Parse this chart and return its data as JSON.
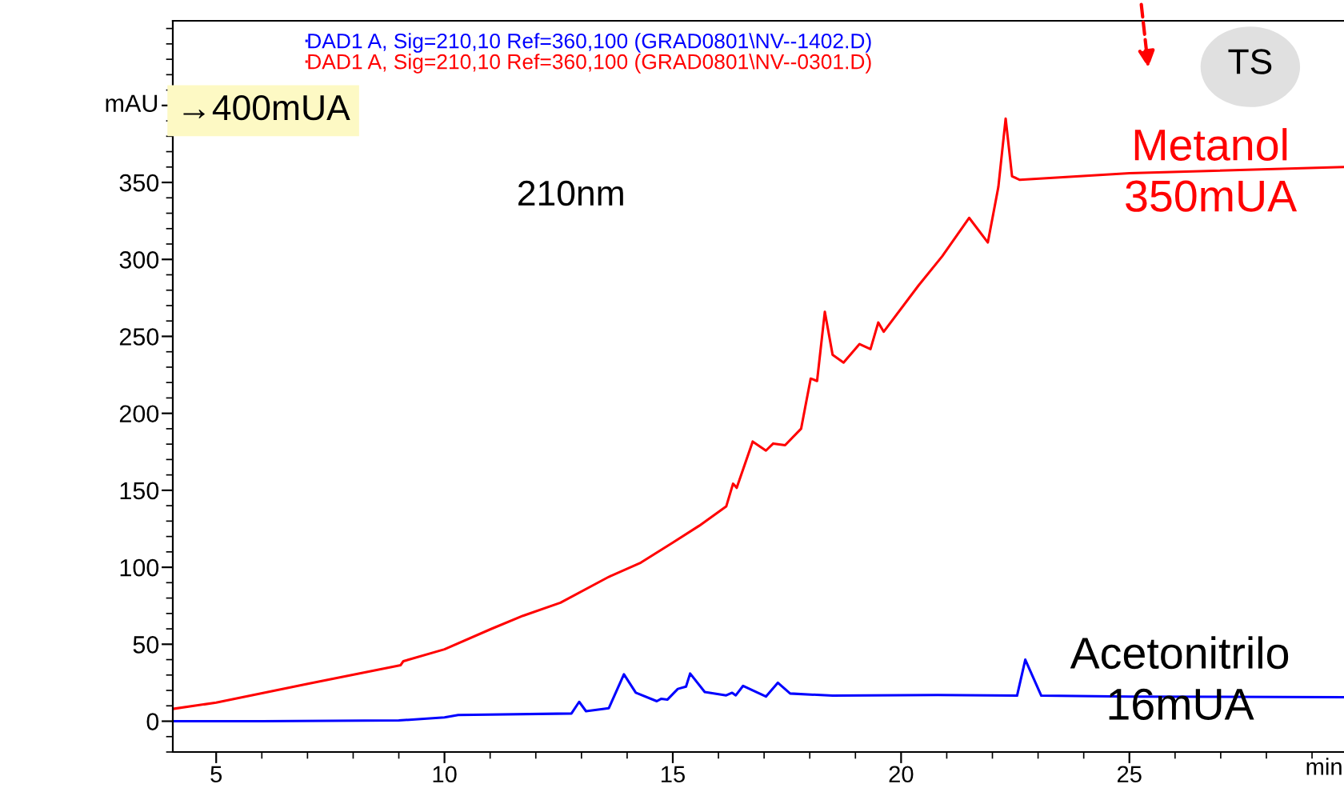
{
  "chart_data": {
    "type": "line",
    "xlabel": "min",
    "series": [
      {
        "name": "DAD1 A, Sig=210,10 Ref=360,100 (GRAD0801\\NV--1402.D)",
        "color": "#0000ff",
        "x": [
          4.05,
          6,
          9,
          10,
          10.3,
          12.78,
          12.95,
          13.1,
          13.6,
          13.93,
          14.19,
          14.65,
          14.75,
          14.88,
          15.11,
          15.29,
          15.38,
          15.7,
          16.17,
          16.3,
          16.38,
          16.54,
          17.04,
          17.3,
          17.57,
          18.5,
          20.8,
          22.54,
          22.72,
          23.07,
          25,
          29.7
        ],
        "values": [
          0,
          0,
          0.5,
          2.5,
          4,
          5,
          12.6,
          6.5,
          8.5,
          30.5,
          18.5,
          13,
          14.6,
          14,
          21,
          22.5,
          31,
          19,
          16.8,
          18.5,
          16.8,
          23,
          16,
          25,
          18,
          16.6,
          17,
          16.6,
          40,
          16.6,
          16,
          15.6
        ]
      },
      {
        "name": "DAD1 A, Sig=210,10 Ref=360,100 (GRAD0801\\NV--0301.D)",
        "color": "#ff0000",
        "x": [
          4.05,
          5,
          7.05,
          9.04,
          9.1,
          10,
          11.02,
          11.72,
          12.54,
          13.6,
          14.3,
          15,
          15.58,
          16.17,
          16.32,
          16.4,
          16.75,
          17.04,
          17.2,
          17.46,
          17.81,
          18.02,
          18.16,
          18.33,
          18.5,
          18.74,
          19.09,
          19.33,
          19.5,
          19.62,
          20.38,
          20.9,
          21.49,
          21.9,
          22.13,
          22.29,
          22.43,
          22.6,
          25,
          29.7
        ],
        "values": [
          8,
          12.1,
          24.6,
          36.4,
          39,
          46.7,
          59.9,
          68.5,
          77,
          93.8,
          103,
          116,
          127,
          139.5,
          154.3,
          151.6,
          181.7,
          175.8,
          180.4,
          179.3,
          190,
          222.6,
          221,
          266,
          238,
          233,
          245,
          241.7,
          259,
          253,
          283,
          302,
          327,
          311,
          347,
          391.5,
          354,
          351.7,
          356,
          360
        ]
      }
    ],
    "xlim": [
      4.05,
      29.7
    ],
    "ylim": [
      -20,
      455
    ],
    "ylabel": "mAU",
    "xticks": [
      5,
      10,
      15,
      20,
      25
    ],
    "yticks": [
      0,
      50,
      100,
      150,
      200,
      250,
      300,
      350,
      {
        "value": 400,
        "label": null
      }
    ],
    "legend": "top left",
    "grid": false,
    "line_style": "solid",
    "marker": "none",
    "annotations": [
      "→400mUA",
      "210nm",
      "TS",
      "Metanol\n350mUA",
      "Acetonitrilo\n16mUA"
    ]
  }
}
